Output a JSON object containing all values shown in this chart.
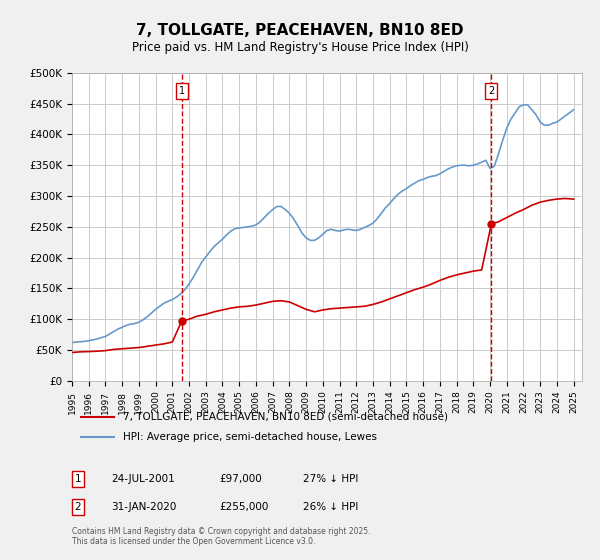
{
  "title": "7, TOLLGATE, PEACEHAVEN, BN10 8ED",
  "subtitle": "Price paid vs. HM Land Registry's House Price Index (HPI)",
  "ylabel_ticks": [
    "£0",
    "£50K",
    "£100K",
    "£150K",
    "£200K",
    "£250K",
    "£300K",
    "£350K",
    "£400K",
    "£450K",
    "£500K"
  ],
  "ytick_values": [
    0,
    50000,
    100000,
    150000,
    200000,
    250000,
    300000,
    350000,
    400000,
    450000,
    500000
  ],
  "ylim": [
    0,
    500000
  ],
  "xlim_start": 1995.0,
  "xlim_end": 2025.5,
  "background_color": "#f0f0f0",
  "plot_bg_color": "#ffffff",
  "grid_color": "#cccccc",
  "purchase_color": "#cc0000",
  "hpi_color": "#6699cc",
  "vline_color": "#cc0000",
  "purchases": [
    {
      "date_num": 2001.56,
      "price": 97000,
      "label": "1"
    },
    {
      "date_num": 2020.08,
      "price": 255000,
      "label": "2"
    }
  ],
  "legend_line1": "7, TOLLGATE, PEACEHAVEN, BN10 8ED (semi-detached house)",
  "legend_line2": "HPI: Average price, semi-detached house, Lewes",
  "annotation1": "1    24-JUL-2001         £97,000         27% ↓ HPI",
  "annotation2": "2    31-JAN-2020         £255,000       26% ↓ HPI",
  "footer": "Contains HM Land Registry data © Crown copyright and database right 2025.\nThis data is licensed under the Open Government Licence v3.0.",
  "hpi_data": {
    "years": [
      1995.0,
      1995.25,
      1995.5,
      1995.75,
      1996.0,
      1996.25,
      1996.5,
      1996.75,
      1997.0,
      1997.25,
      1997.5,
      1997.75,
      1998.0,
      1998.25,
      1998.5,
      1998.75,
      1999.0,
      1999.25,
      1999.5,
      1999.75,
      2000.0,
      2000.25,
      2000.5,
      2000.75,
      2001.0,
      2001.25,
      2001.5,
      2001.75,
      2002.0,
      2002.25,
      2002.5,
      2002.75,
      2003.0,
      2003.25,
      2003.5,
      2003.75,
      2004.0,
      2004.25,
      2004.5,
      2004.75,
      2005.0,
      2005.25,
      2005.5,
      2005.75,
      2006.0,
      2006.25,
      2006.5,
      2006.75,
      2007.0,
      2007.25,
      2007.5,
      2007.75,
      2008.0,
      2008.25,
      2008.5,
      2008.75,
      2009.0,
      2009.25,
      2009.5,
      2009.75,
      2010.0,
      2010.25,
      2010.5,
      2010.75,
      2011.0,
      2011.25,
      2011.5,
      2011.75,
      2012.0,
      2012.25,
      2012.5,
      2012.75,
      2013.0,
      2013.25,
      2013.5,
      2013.75,
      2014.0,
      2014.25,
      2014.5,
      2014.75,
      2015.0,
      2015.25,
      2015.5,
      2015.75,
      2016.0,
      2016.25,
      2016.5,
      2016.75,
      2017.0,
      2017.25,
      2017.5,
      2017.75,
      2018.0,
      2018.25,
      2018.5,
      2018.75,
      2019.0,
      2019.25,
      2019.5,
      2019.75,
      2020.0,
      2020.25,
      2020.5,
      2020.75,
      2021.0,
      2021.25,
      2021.5,
      2021.75,
      2022.0,
      2022.25,
      2022.5,
      2022.75,
      2023.0,
      2023.25,
      2023.5,
      2023.75,
      2024.0,
      2024.25,
      2024.5,
      2024.75,
      2025.0
    ],
    "values": [
      62000,
      63000,
      63500,
      64000,
      65000,
      66500,
      68000,
      70000,
      72000,
      76000,
      80000,
      84000,
      87000,
      90000,
      92000,
      93000,
      95000,
      99000,
      104000,
      110000,
      116000,
      121000,
      126000,
      129000,
      132000,
      136000,
      141000,
      148000,
      157000,
      168000,
      180000,
      192000,
      201000,
      210000,
      218000,
      224000,
      230000,
      237000,
      243000,
      247000,
      248000,
      249000,
      250000,
      251000,
      253000,
      258000,
      265000,
      272000,
      278000,
      283000,
      283000,
      278000,
      272000,
      263000,
      252000,
      240000,
      232000,
      228000,
      228000,
      232000,
      238000,
      244000,
      246000,
      244000,
      243000,
      245000,
      246000,
      245000,
      244000,
      246000,
      249000,
      252000,
      256000,
      263000,
      272000,
      281000,
      288000,
      296000,
      303000,
      308000,
      312000,
      317000,
      321000,
      325000,
      327000,
      330000,
      332000,
      333000,
      336000,
      340000,
      344000,
      347000,
      349000,
      350000,
      350000,
      349000,
      350000,
      352000,
      355000,
      358000,
      345000,
      348000,
      368000,
      390000,
      410000,
      425000,
      435000,
      445000,
      448000,
      448000,
      440000,
      432000,
      420000,
      415000,
      415000,
      418000,
      420000,
      425000,
      430000,
      435000,
      440000
    ]
  },
  "red_data": {
    "years": [
      1995.0,
      1995.5,
      1996.0,
      1996.5,
      1997.0,
      1997.5,
      1998.0,
      1998.5,
      1999.0,
      1999.5,
      2000.0,
      2000.5,
      2001.0,
      2001.56,
      2002.0,
      2002.5,
      2003.0,
      2003.5,
      2004.0,
      2004.5,
      2005.0,
      2005.5,
      2006.0,
      2006.5,
      2007.0,
      2007.5,
      2008.0,
      2008.5,
      2009.0,
      2009.5,
      2010.0,
      2010.5,
      2011.0,
      2011.5,
      2012.0,
      2012.5,
      2013.0,
      2013.5,
      2014.0,
      2014.5,
      2015.0,
      2015.5,
      2016.0,
      2016.5,
      2017.0,
      2017.5,
      2018.0,
      2018.5,
      2019.0,
      2019.5,
      2020.08,
      2020.5,
      2021.0,
      2021.5,
      2022.0,
      2022.5,
      2023.0,
      2023.5,
      2024.0,
      2024.5,
      2025.0
    ],
    "values": [
      46000,
      47000,
      47500,
      48000,
      49000,
      51000,
      52000,
      53000,
      54000,
      56000,
      58000,
      60000,
      63000,
      97000,
      100000,
      105000,
      108000,
      112000,
      115000,
      118000,
      120000,
      121000,
      123000,
      126000,
      129000,
      130000,
      128000,
      122000,
      116000,
      112000,
      115000,
      117000,
      118000,
      119000,
      120000,
      121000,
      124000,
      128000,
      133000,
      138000,
      143000,
      148000,
      152000,
      157000,
      163000,
      168000,
      172000,
      175000,
      178000,
      180000,
      255000,
      258000,
      265000,
      272000,
      278000,
      285000,
      290000,
      293000,
      295000,
      296000,
      295000
    ]
  }
}
